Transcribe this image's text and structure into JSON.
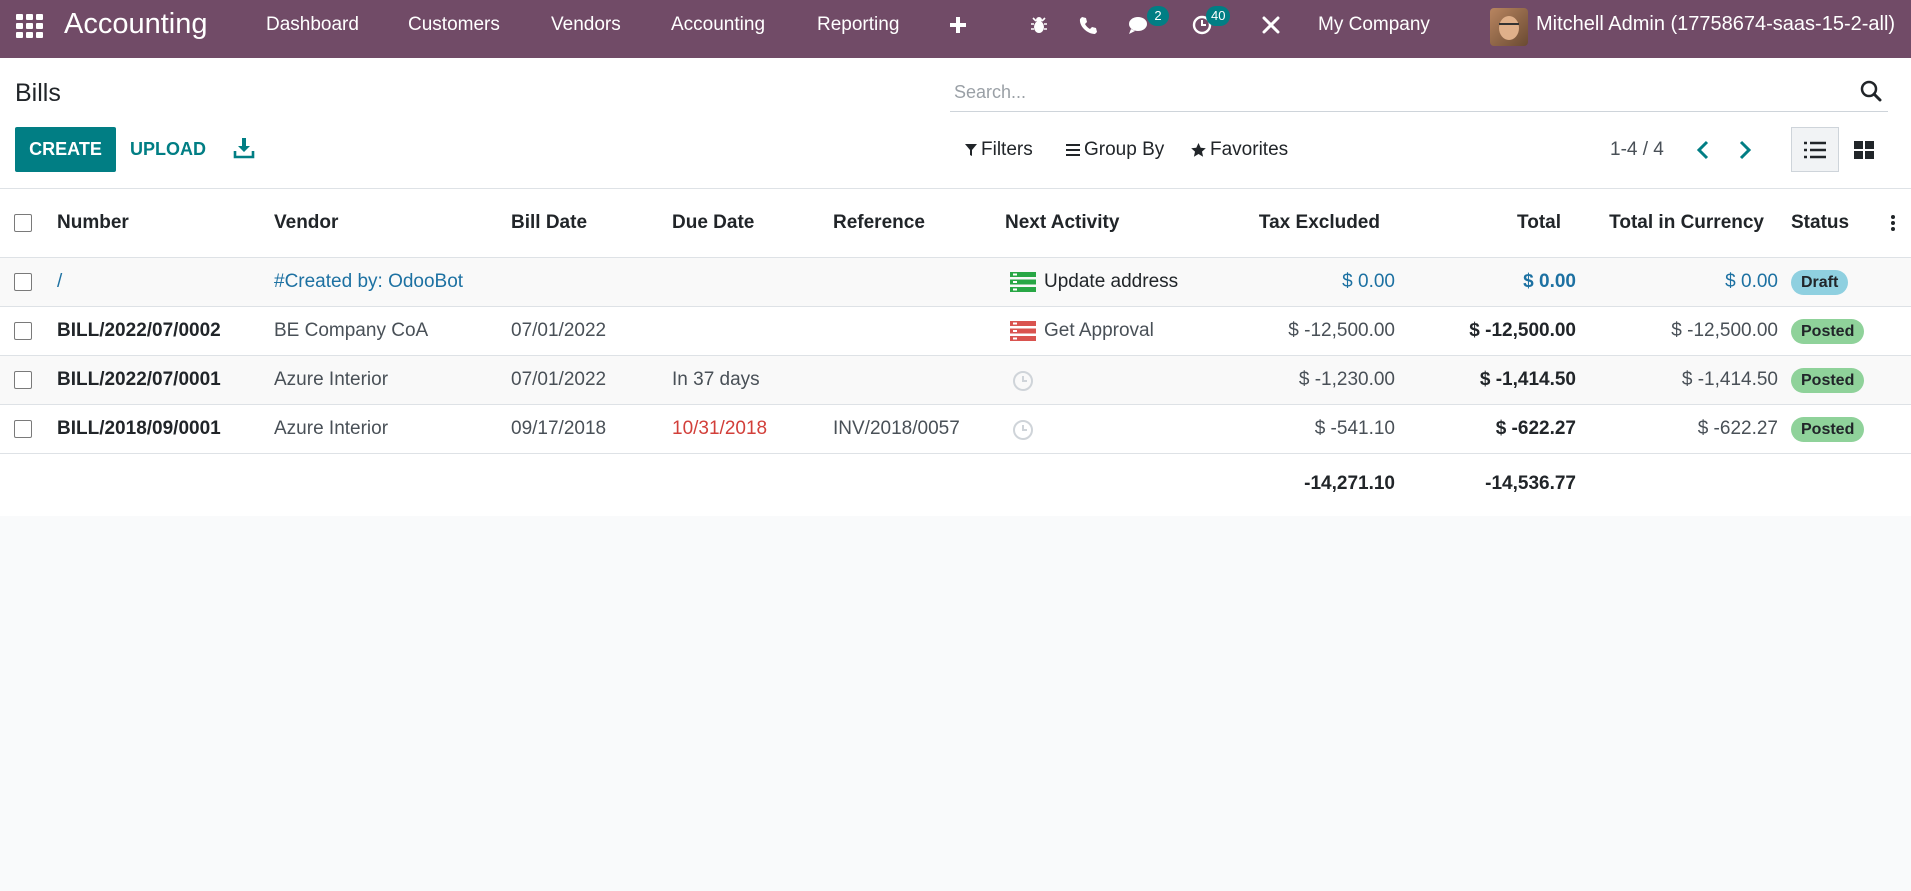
{
  "navbar": {
    "app_title": "Accounting",
    "menu": [
      "Dashboard",
      "Customers",
      "Vendors",
      "Accounting",
      "Reporting"
    ],
    "add_icon": "plus-icon",
    "messages_badge": "2",
    "activities_badge": "40",
    "company": "My Company",
    "user": "Mitchell Admin (17758674-saas-15-2-all)",
    "bg_color": "#714b67"
  },
  "control_panel": {
    "title": "Bills",
    "search_placeholder": "Search...",
    "create_label": "CREATE",
    "upload_label": "UPLOAD",
    "filters_label": "Filters",
    "groupby_label": "Group By",
    "favorites_label": "Favorites",
    "pager": "1-4 / 4",
    "accent_color": "#017e84"
  },
  "table": {
    "columns": {
      "number": "Number",
      "vendor": "Vendor",
      "bill_date": "Bill Date",
      "due_date": "Due Date",
      "reference": "Reference",
      "next_activity": "Next Activity",
      "tax_excluded": "Tax Excluded",
      "total": "Total",
      "total_currency": "Total in Currency",
      "status": "Status"
    },
    "rows": [
      {
        "number": "/",
        "vendor": "#Created by: OdooBot",
        "bill_date": "",
        "due_date": "",
        "reference": "",
        "activity": "Update address",
        "activity_icon": "activity-list-icon-green",
        "tax_excluded": "$ 0.00",
        "total": "$ 0.00",
        "total_currency": "$ 0.00",
        "status": "Draft"
      },
      {
        "number": "BILL/2022/07/0002",
        "vendor": "BE Company CoA",
        "bill_date": "07/01/2022",
        "due_date": "",
        "reference": "",
        "activity": "Get Approval",
        "activity_icon": "activity-list-icon-red",
        "tax_excluded": "$ -12,500.00",
        "total": "$ -12,500.00",
        "total_currency": "$ -12,500.00",
        "status": "Posted"
      },
      {
        "number": "BILL/2022/07/0001",
        "vendor": "Azure Interior",
        "bill_date": "07/01/2022",
        "due_date": "In 37 days",
        "reference": "",
        "activity": "",
        "activity_icon": "clock-icon",
        "tax_excluded": "$ -1,230.00",
        "total": "$ -1,414.50",
        "total_currency": "$ -1,414.50",
        "status": "Posted"
      },
      {
        "number": "BILL/2018/09/0001",
        "vendor": "Azure Interior",
        "bill_date": "09/17/2018",
        "due_date": "10/31/2018",
        "reference": "INV/2018/0057",
        "activity": "",
        "activity_icon": "clock-icon",
        "tax_excluded": "$ -541.10",
        "total": "$ -622.27",
        "total_currency": "$ -622.27",
        "status": "Posted"
      }
    ],
    "totals": {
      "tax_excluded": "-14,271.10",
      "total": "-14,536.77"
    },
    "status_colors": {
      "Draft": "#8fd0e0",
      "Posted": "#8fd29a"
    },
    "overdue_color": "#d23f3a",
    "draft_text_color": "#1d71a2"
  }
}
